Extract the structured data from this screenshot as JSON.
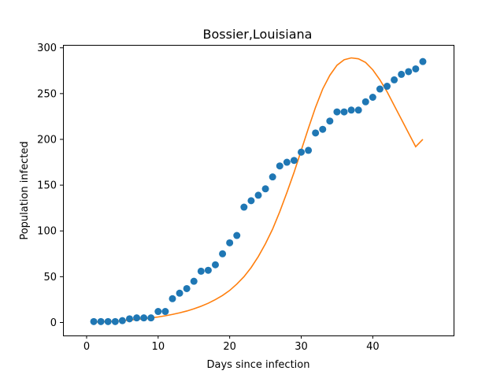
{
  "chart_data": {
    "type": "scatter",
    "title": "Bossier,Louisiana",
    "xlabel": "Days since infection",
    "ylabel": "Population infected",
    "xlim": [
      -3.3,
      51.3
    ],
    "ylim": [
      -14.2,
      303.2
    ],
    "xticks": [
      0,
      10,
      20,
      30,
      40
    ],
    "yticks": [
      0,
      50,
      100,
      150,
      200,
      250,
      300
    ],
    "grid": false,
    "series": [
      {
        "kind": "scatter",
        "color": "#1f77b4",
        "x": [
          1,
          2,
          3,
          4,
          5,
          6,
          7,
          8,
          9,
          10,
          11,
          12,
          13,
          14,
          15,
          16,
          17,
          18,
          19,
          20,
          21,
          22,
          23,
          24,
          25,
          26,
          27,
          28,
          29,
          30,
          31,
          32,
          33,
          34,
          35,
          36,
          37,
          38,
          39,
          40,
          41,
          42,
          43,
          44,
          45,
          46,
          47
        ],
        "y": [
          1,
          1,
          1,
          1,
          2,
          4,
          5,
          5,
          5,
          12,
          12,
          26,
          32,
          37,
          45,
          56,
          57,
          63,
          75,
          87,
          95,
          126,
          133,
          139,
          146,
          159,
          171,
          175,
          177,
          186,
          188,
          207,
          211,
          220,
          230,
          230,
          232,
          232,
          241,
          246,
          255,
          258,
          265,
          271,
          274,
          277,
          285
        ]
      },
      {
        "kind": "line",
        "color": "#ff7f0e",
        "x": [
          1,
          2,
          3,
          4,
          5,
          6,
          7,
          8,
          9,
          10,
          11,
          12,
          13,
          14,
          15,
          16,
          17,
          18,
          19,
          20,
          21,
          22,
          23,
          24,
          25,
          26,
          27,
          28,
          29,
          30,
          31,
          32,
          33,
          34,
          35,
          36,
          37,
          38,
          39,
          40,
          41,
          42,
          43,
          44,
          45,
          46,
          47
        ],
        "y": [
          0.5,
          0.8,
          1.1,
          1.5,
          2,
          2.6,
          3.3,
          4.1,
          5,
          6,
          7.3,
          8.8,
          10.5,
          12.5,
          14.9,
          17.7,
          21,
          25,
          29.5,
          35,
          42,
          50,
          60,
          72,
          86,
          102,
          121,
          142,
          164,
          188,
          212,
          235,
          255,
          270,
          281,
          287,
          289,
          288,
          284,
          276,
          265,
          252,
          237,
          222,
          207,
          192,
          200
        ]
      }
    ]
  }
}
